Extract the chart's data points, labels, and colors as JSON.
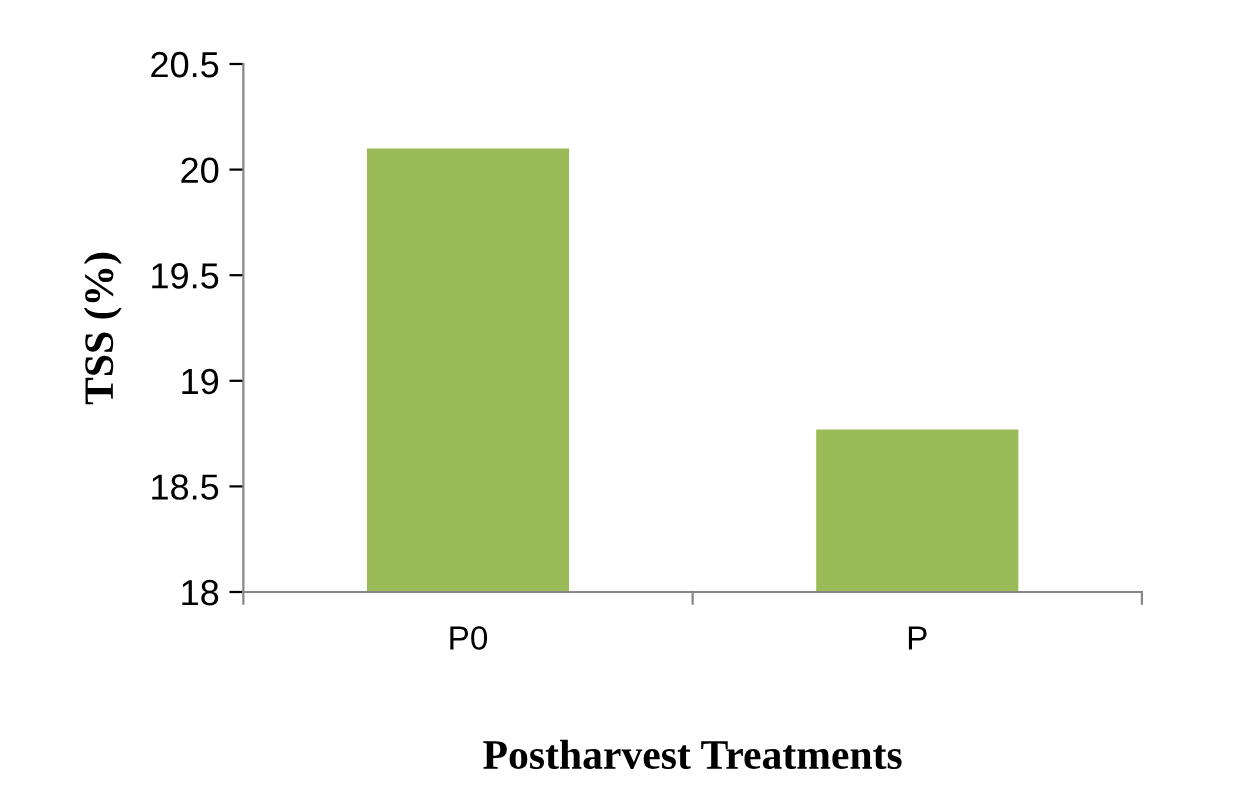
{
  "chart_data": {
    "type": "bar",
    "categories": [
      "P0",
      "P"
    ],
    "values": [
      20.1,
      18.77
    ],
    "color": "#9bbb59",
    "ylim": [
      18,
      20.5
    ],
    "yticks": [
      18,
      18.5,
      19,
      19.5,
      20,
      20.5
    ],
    "ylabel": "TSS (%)",
    "xlabel": "Postharvest Treatments",
    "grid": false
  }
}
